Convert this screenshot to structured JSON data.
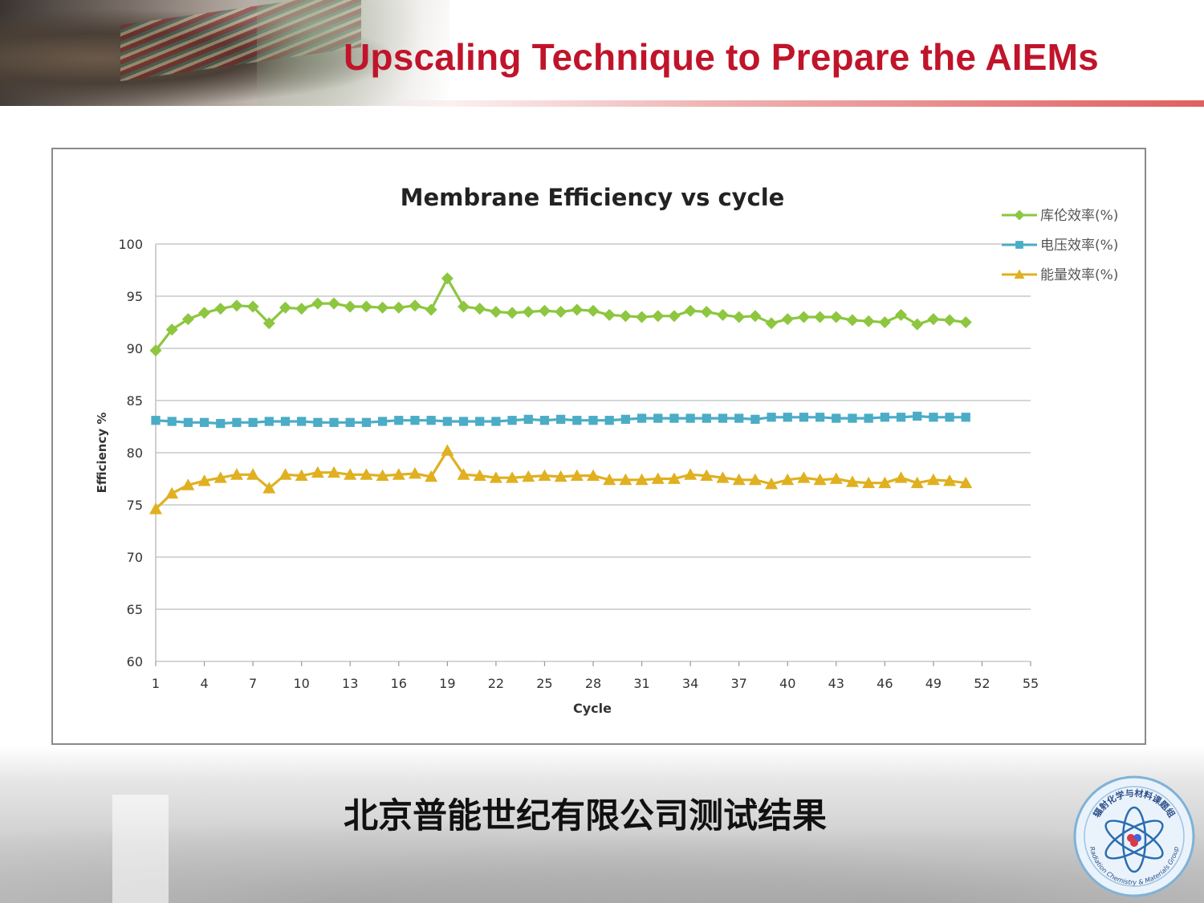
{
  "slide": {
    "title": "Upscaling Technique to Prepare the AIEMs",
    "caption": "北京普能世纪有限公司测试结果",
    "logo": {
      "icon": "atom-logo-icon",
      "top_text": "辐射化学与材料课题组",
      "bottom_text": "Radiation Chemistry & Materials Group"
    },
    "colors": {
      "title": "#c0142a",
      "accent_line": "#e06060"
    }
  },
  "chart_data": {
    "type": "line",
    "title": "Membrane Efficiency vs cycle",
    "xlabel": "Cycle",
    "ylabel": "Efficiency %",
    "xlim": [
      1,
      55
    ],
    "ylim": [
      60,
      100
    ],
    "x_ticks": [
      1,
      4,
      7,
      10,
      13,
      16,
      19,
      22,
      25,
      28,
      31,
      34,
      37,
      40,
      43,
      46,
      49,
      52,
      55
    ],
    "y_ticks": [
      60,
      65,
      70,
      75,
      80,
      85,
      90,
      95,
      100
    ],
    "grid": "horizontal",
    "legend_position": "top-right",
    "x": [
      1,
      2,
      3,
      4,
      5,
      6,
      7,
      8,
      9,
      10,
      11,
      12,
      13,
      14,
      15,
      16,
      17,
      18,
      19,
      20,
      21,
      22,
      23,
      24,
      25,
      26,
      27,
      28,
      29,
      30,
      31,
      32,
      33,
      34,
      35,
      36,
      37,
      38,
      39,
      40,
      41,
      42,
      43,
      44,
      45,
      46,
      47,
      48,
      49,
      50,
      51
    ],
    "series": [
      {
        "name": "库伦效率(%)",
        "color": "#8dc63f",
        "marker": "diamond",
        "values": [
          89.8,
          91.8,
          92.8,
          93.4,
          93.8,
          94.1,
          94.0,
          92.4,
          93.9,
          93.8,
          94.3,
          94.3,
          94.0,
          94.0,
          93.9,
          93.9,
          94.1,
          93.7,
          96.7,
          94.0,
          93.8,
          93.5,
          93.4,
          93.5,
          93.6,
          93.5,
          93.7,
          93.6,
          93.2,
          93.1,
          93.0,
          93.1,
          93.1,
          93.6,
          93.5,
          93.2,
          93.0,
          93.1,
          92.4,
          92.8,
          93.0,
          93.0,
          93.0,
          92.7,
          92.6,
          92.5,
          93.2,
          92.3,
          92.8,
          92.7,
          92.5
        ]
      },
      {
        "name": "电压效率(%)",
        "color": "#4bacc6",
        "marker": "square",
        "values": [
          83.1,
          83.0,
          82.9,
          82.9,
          82.8,
          82.9,
          82.9,
          83.0,
          83.0,
          83.0,
          82.9,
          82.9,
          82.9,
          82.9,
          83.0,
          83.1,
          83.1,
          83.1,
          83.0,
          83.0,
          83.0,
          83.0,
          83.1,
          83.2,
          83.1,
          83.2,
          83.1,
          83.1,
          83.1,
          83.2,
          83.3,
          83.3,
          83.3,
          83.3,
          83.3,
          83.3,
          83.3,
          83.2,
          83.4,
          83.4,
          83.4,
          83.4,
          83.3,
          83.3,
          83.3,
          83.4,
          83.4,
          83.5,
          83.4,
          83.4,
          83.4
        ]
      },
      {
        "name": "能量效率(%)",
        "color": "#e0b020",
        "marker": "triangle",
        "values": [
          74.6,
          76.1,
          76.9,
          77.3,
          77.6,
          77.9,
          77.9,
          76.6,
          77.9,
          77.8,
          78.1,
          78.1,
          77.9,
          77.9,
          77.8,
          77.9,
          78.0,
          77.7,
          80.2,
          77.9,
          77.8,
          77.6,
          77.6,
          77.7,
          77.8,
          77.7,
          77.8,
          77.8,
          77.4,
          77.4,
          77.4,
          77.5,
          77.5,
          77.9,
          77.8,
          77.6,
          77.4,
          77.4,
          77.0,
          77.4,
          77.6,
          77.4,
          77.5,
          77.2,
          77.1,
          77.1,
          77.6,
          77.1,
          77.4,
          77.3,
          77.1
        ]
      }
    ]
  }
}
